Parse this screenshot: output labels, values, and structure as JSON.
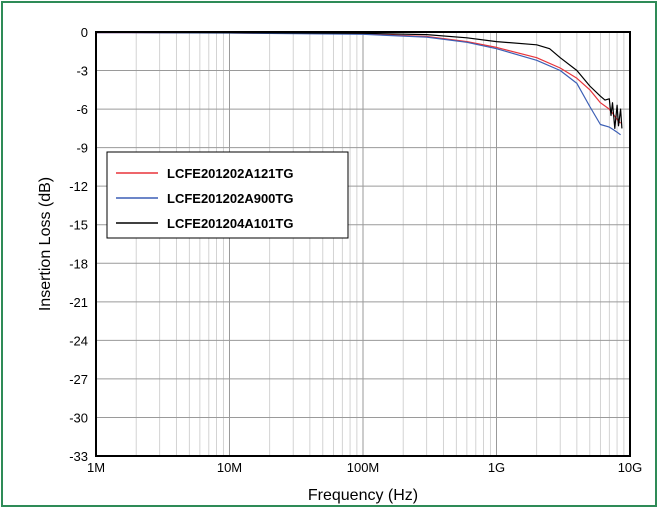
{
  "chart_data": {
    "type": "line",
    "title": "",
    "xlabel": "Frequency (Hz)",
    "ylabel": "Insertion Loss (dB)",
    "xscale": "log",
    "xlim": [
      1000000,
      10000000000
    ],
    "ylim": [
      -33,
      0
    ],
    "grid": true,
    "legend_position": "left, below top",
    "x_ticks": [
      {
        "value": 1000000,
        "label": "1M"
      },
      {
        "value": 10000000,
        "label": "10M"
      },
      {
        "value": 100000000,
        "label": "100M"
      },
      {
        "value": 1000000000,
        "label": "1G"
      },
      {
        "value": 10000000000,
        "label": "10G"
      }
    ],
    "y_ticks": [
      {
        "value": 0,
        "label": "0"
      },
      {
        "value": -3,
        "label": "-3"
      },
      {
        "value": -6,
        "label": "-6"
      },
      {
        "value": -9,
        "label": "-9"
      },
      {
        "value": -12,
        "label": "-12"
      },
      {
        "value": -15,
        "label": "-15"
      },
      {
        "value": -18,
        "label": "-18"
      },
      {
        "value": -21,
        "label": "-21"
      },
      {
        "value": -24,
        "label": "-24"
      },
      {
        "value": -27,
        "label": "-27"
      },
      {
        "value": -30,
        "label": "-30"
      },
      {
        "value": -33,
        "label": "-33"
      }
    ],
    "series": [
      {
        "name": "LCFE201202A121TG",
        "color": "#e8343a",
        "points": [
          [
            1000000,
            -0.05
          ],
          [
            10000000,
            -0.07
          ],
          [
            100000000,
            -0.15
          ],
          [
            300000000,
            -0.35
          ],
          [
            600000000,
            -0.75
          ],
          [
            1000000000,
            -1.2
          ],
          [
            2000000000,
            -2.0
          ],
          [
            3000000000,
            -2.8
          ],
          [
            4000000000,
            -3.6
          ],
          [
            5000000000,
            -4.5
          ],
          [
            6000000000,
            -5.5
          ],
          [
            7000000000,
            -6.0
          ],
          [
            7500000000,
            -6.4
          ],
          [
            8000000000,
            -6.8
          ],
          [
            8500000000,
            -7.1
          ]
        ]
      },
      {
        "name": "LCFE201202A900TG",
        "color": "#3c5fb5",
        "points": [
          [
            1000000,
            -0.05
          ],
          [
            10000000,
            -0.08
          ],
          [
            100000000,
            -0.18
          ],
          [
            300000000,
            -0.4
          ],
          [
            600000000,
            -0.8
          ],
          [
            1000000000,
            -1.3
          ],
          [
            2000000000,
            -2.2
          ],
          [
            3000000000,
            -3.0
          ],
          [
            4000000000,
            -4.0
          ],
          [
            5000000000,
            -5.8
          ],
          [
            6000000000,
            -7.2
          ],
          [
            7000000000,
            -7.4
          ],
          [
            7500000000,
            -7.6
          ],
          [
            8000000000,
            -7.8
          ],
          [
            8500000000,
            -8.0
          ]
        ]
      },
      {
        "name": "LCFE201204A101TG",
        "color": "#000000",
        "points": [
          [
            1000000,
            -0.03
          ],
          [
            10000000,
            -0.05
          ],
          [
            100000000,
            -0.1
          ],
          [
            300000000,
            -0.2
          ],
          [
            600000000,
            -0.45
          ],
          [
            1000000000,
            -0.75
          ],
          [
            2000000000,
            -1.0
          ],
          [
            2500000000,
            -1.3
          ],
          [
            3000000000,
            -2.0
          ],
          [
            4000000000,
            -3.0
          ],
          [
            5000000000,
            -4.2
          ],
          [
            6000000000,
            -5.0
          ],
          [
            6500000000,
            -5.3
          ],
          [
            7000000000,
            -5.2
          ],
          [
            7200000000,
            -6.5
          ],
          [
            7400000000,
            -5.5
          ],
          [
            7700000000,
            -7.5
          ],
          [
            8000000000,
            -5.7
          ],
          [
            8200000000,
            -7.3
          ],
          [
            8500000000,
            -6.0
          ],
          [
            8700000000,
            -7.5
          ]
        ]
      }
    ]
  }
}
